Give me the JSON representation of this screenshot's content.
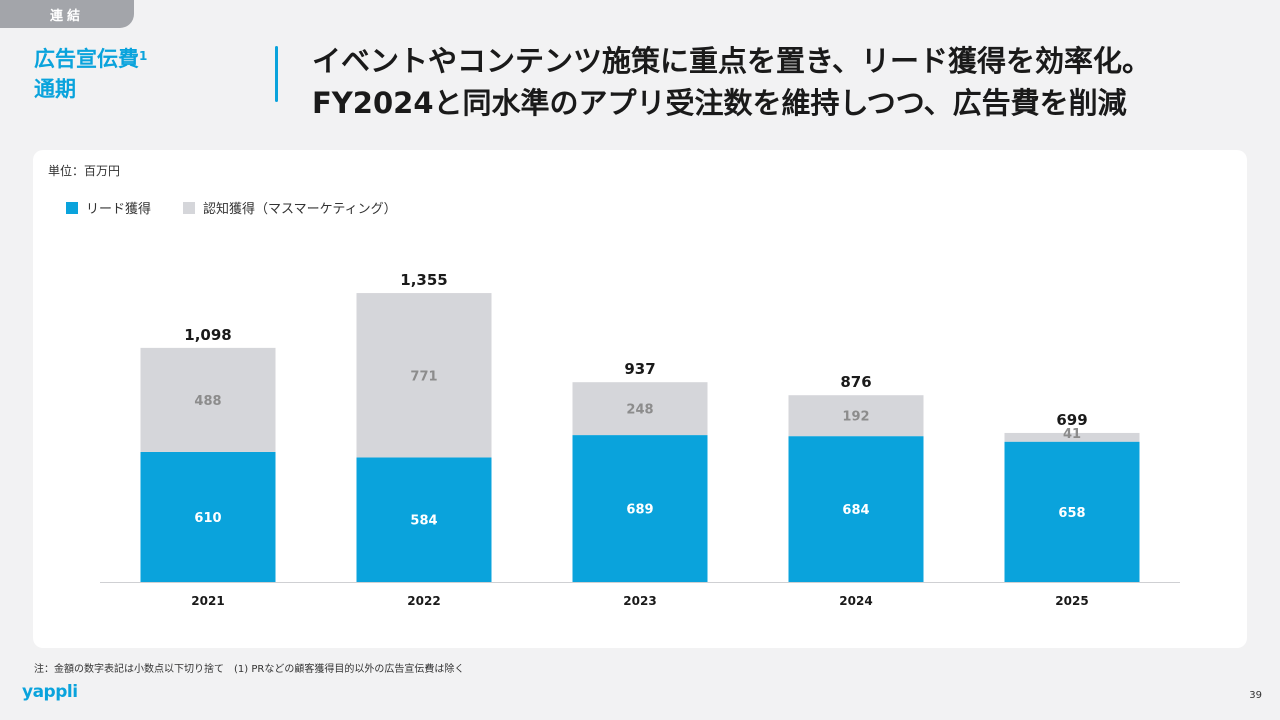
{
  "tag": "連結",
  "section_title": {
    "main": "広告宣伝費",
    "sup": "1",
    "sub": "通期"
  },
  "headline": {
    "line1": "イベントやコンテンツ施策に重点を置き、リード獲得を効率化。",
    "line2": "FY2024と同水準のアプリ受注数を維持しつつ、広告費を削減"
  },
  "unit_label": "単位：百万円",
  "colors": {
    "lead": "#0aa3dc",
    "awareness": "#d5d6da",
    "accent": "#0aa3dc"
  },
  "chart_data": {
    "type": "bar",
    "stacked": true,
    "categories": [
      "2021",
      "2022",
      "2023",
      "2024",
      "2025"
    ],
    "series": [
      {
        "name": "リード獲得",
        "values": [
          610,
          584,
          689,
          684,
          658
        ]
      },
      {
        "name": "認知獲得（マスマーケティング）",
        "values": [
          488,
          771,
          248,
          192,
          41
        ]
      }
    ],
    "totals": [
      "1,098",
      "1,355",
      "937",
      "876",
      "699"
    ],
    "ylim": [
      0,
      1400
    ],
    "legend": "top-left",
    "grid": false
  },
  "footnote": "注：金額の数字表記は小数点以下切り捨て　(1) PRなどの顧客獲得目的以外の広告宣伝費は除く",
  "logo": "yappli",
  "page_number": "39"
}
